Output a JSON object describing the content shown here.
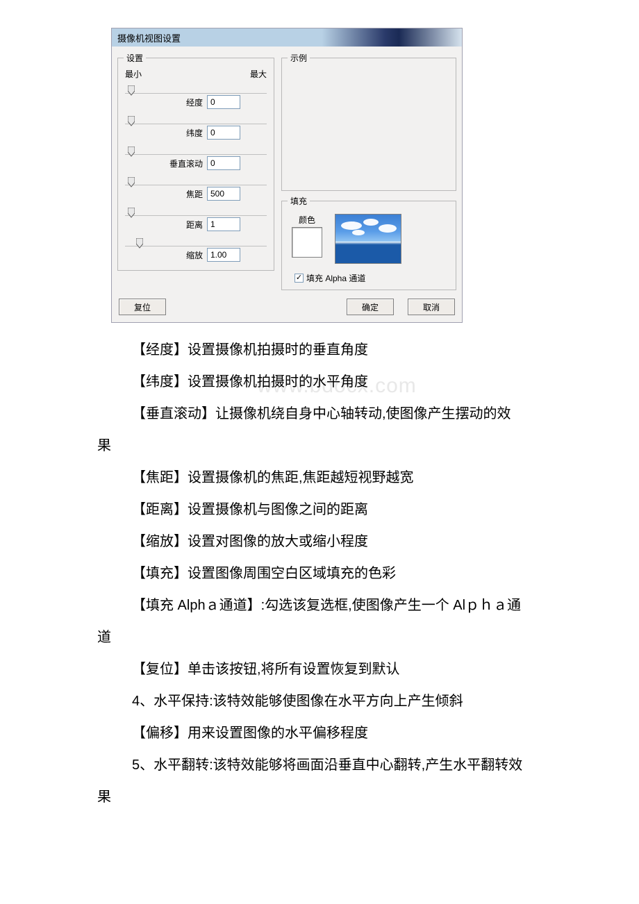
{
  "dialog": {
    "title": "摄像机视图设置",
    "settings_legend": "设置",
    "example_legend": "示例",
    "range_min": "最小",
    "range_max": "最大",
    "sliders": {
      "longitude": {
        "label": "经度",
        "value": "0",
        "thumb_pos_pct": 2
      },
      "latitude": {
        "label": "纬度",
        "value": "0",
        "thumb_pos_pct": 2
      },
      "roll": {
        "label": "垂直滚动",
        "value": "0",
        "thumb_pos_pct": 2
      },
      "focal": {
        "label": "焦距",
        "value": "500",
        "thumb_pos_pct": 2
      },
      "distance": {
        "label": "距离",
        "value": "1",
        "thumb_pos_pct": 2
      },
      "zoom": {
        "label": "缩放",
        "value": "1.00",
        "thumb_pos_pct": 8
      }
    },
    "fill": {
      "legend": "填充",
      "color_label": "颜色",
      "swatch_color": "#ffffff",
      "checkbox_label": "填充 Alpha 通道",
      "checkbox_checked": true
    },
    "buttons": {
      "reset": "复位",
      "ok": "确定",
      "cancel": "取消"
    },
    "colors": {
      "dialog_bg": "#f2f1f0",
      "field_border": "#7f9db9",
      "group_border": "#b8b8b8"
    }
  },
  "doc": {
    "watermark": "www.bdocx.com",
    "lines": {
      "l1": "【经度】设置摄像机拍摄时的垂直角度",
      "l2": "【纬度】设置摄像机拍摄时的水平角度",
      "l3a": "【垂直滚动】让摄像机绕自身中心轴转动,使图像产生摆动的效",
      "l3b": "果",
      "l4": "【焦距】设置摄像机的焦距,焦距越短视野越宽",
      "l5": "【距离】设置摄像机与图像之间的距离",
      "l6": "【缩放】设置对图像的放大或缩小程度",
      "l7": "【填充】设置图像周围空白区域填充的色彩",
      "l8a": "【填充 Alphａ通道】:勾选该复选框,使图像产生一个 Alｐｈａ通",
      "l8b": "道",
      "l9": "【复位】单击该按钮,将所有设置恢复到默认",
      "l10": "4、水平保持:该特效能够使图像在水平方向上产生倾斜",
      "l11": "【偏移】用来设置图像的水平偏移程度",
      "l12a": "5、水平翻转:该特效能够将画面沿垂直中心翻转,产生水平翻转效",
      "l12b": "果"
    }
  }
}
